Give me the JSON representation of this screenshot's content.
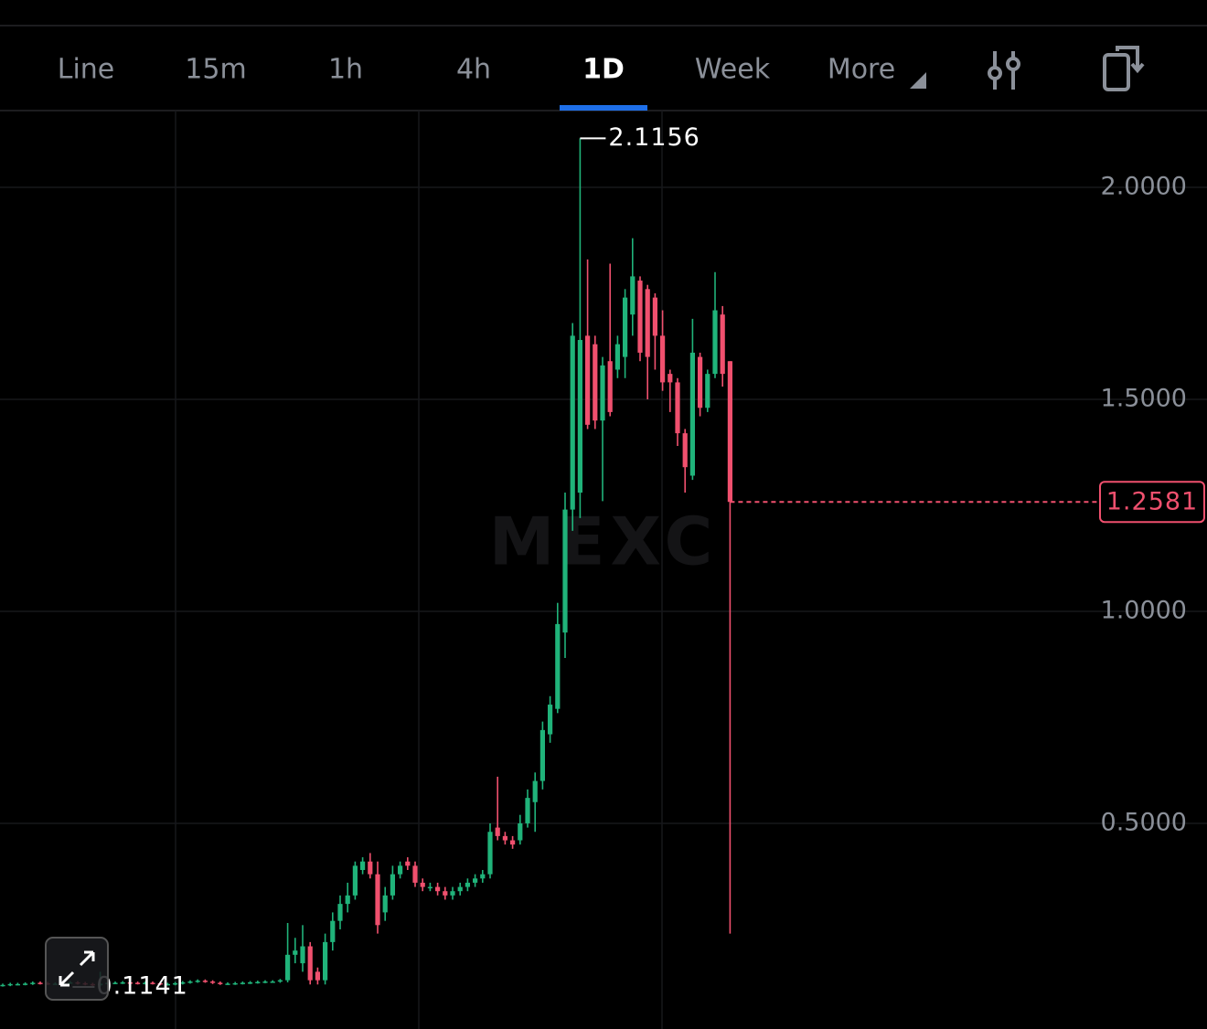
{
  "tabs": [
    "Line",
    "15m",
    "1h",
    "4h",
    "1D",
    "Week",
    "More"
  ],
  "active_tab": 4,
  "chart_data": {
    "type": "candlestick",
    "watermark": "MEXC",
    "up_color": "#20b37a",
    "down_color": "#f0506e",
    "grid": true,
    "ylim": [
      0.015,
      2.181
    ],
    "yticks": [
      {
        "value": 0.5,
        "label": "0.5000"
      },
      {
        "value": 1,
        "label": "1.0000"
      },
      {
        "value": 1.5,
        "label": "1.5000"
      },
      {
        "value": 2,
        "label": "2.0000"
      }
    ],
    "open": [
      0.118,
      0.119,
      0.121,
      0.121,
      0.122,
      0.124,
      0.123,
      0.122,
      0.122,
      0.124,
      0.125,
      0.123,
      0.121,
      0.118,
      0.122,
      0.124,
      0.124,
      0.125,
      0.124,
      0.123,
      0.124,
      0.123,
      0.121,
      0.121,
      0.123,
      0.125,
      0.127,
      0.129,
      0.127,
      0.124,
      0.122,
      0.122,
      0.123,
      0.124,
      0.125,
      0.126,
      0.127,
      0.127,
      0.13,
      0.19,
      0.17,
      0.21,
      0.15,
      0.13,
      0.22,
      0.27,
      0.31,
      0.33,
      0.39,
      0.41,
      0.38,
      0.29,
      0.33,
      0.38,
      0.41,
      0.4,
      0.36,
      0.35,
      0.35,
      0.34,
      0.33,
      0.34,
      0.35,
      0.36,
      0.37,
      0.38,
      0.49,
      0.47,
      0.46,
      0.46,
      0.5,
      0.55,
      0.6,
      0.71,
      0.77,
      0.95,
      1.24,
      1.28,
      1.65,
      1.63,
      1.45,
      1.59,
      1.57,
      1.6,
      1.7,
      1.78,
      1.76,
      1.74,
      1.65,
      1.56,
      1.54,
      1.42,
      1.32,
      1.6,
      1.48,
      1.56,
      1.7,
      1.59
    ],
    "high": [
      0.122,
      0.124,
      0.124,
      0.125,
      0.127,
      0.127,
      0.126,
      0.125,
      0.127,
      0.128,
      0.128,
      0.126,
      0.124,
      0.15,
      0.127,
      0.127,
      0.128,
      0.128,
      0.127,
      0.127,
      0.127,
      0.126,
      0.124,
      0.126,
      0.128,
      0.13,
      0.132,
      0.132,
      0.13,
      0.127,
      0.125,
      0.126,
      0.127,
      0.128,
      0.129,
      0.13,
      0.13,
      0.133,
      0.265,
      0.23,
      0.26,
      0.22,
      0.16,
      0.24,
      0.29,
      0.33,
      0.36,
      0.41,
      0.42,
      0.43,
      0.41,
      0.35,
      0.4,
      0.41,
      0.42,
      0.41,
      0.37,
      0.36,
      0.36,
      0.35,
      0.35,
      0.36,
      0.37,
      0.38,
      0.39,
      0.5,
      0.61,
      0.48,
      0.47,
      0.52,
      0.58,
      0.62,
      0.74,
      0.8,
      1.02,
      1.28,
      1.68,
      2.1156,
      1.83,
      1.65,
      1.6,
      1.82,
      1.65,
      1.76,
      1.88,
      1.79,
      1.77,
      1.75,
      1.71,
      1.57,
      1.55,
      1.43,
      1.69,
      1.61,
      1.57,
      1.8,
      1.72,
      1.59
    ],
    "low": [
      0.115,
      0.116,
      0.118,
      0.118,
      0.119,
      0.12,
      0.119,
      0.119,
      0.119,
      0.121,
      0.12,
      0.118,
      0.1141,
      0.115,
      0.119,
      0.121,
      0.121,
      0.121,
      0.12,
      0.12,
      0.12,
      0.118,
      0.118,
      0.118,
      0.12,
      0.122,
      0.124,
      0.124,
      0.121,
      0.119,
      0.119,
      0.119,
      0.12,
      0.121,
      0.122,
      0.123,
      0.124,
      0.124,
      0.125,
      0.17,
      0.15,
      0.12,
      0.12,
      0.12,
      0.2,
      0.25,
      0.29,
      0.32,
      0.38,
      0.37,
      0.24,
      0.27,
      0.32,
      0.37,
      0.39,
      0.35,
      0.34,
      0.34,
      0.33,
      0.32,
      0.32,
      0.33,
      0.34,
      0.35,
      0.36,
      0.37,
      0.46,
      0.45,
      0.44,
      0.45,
      0.49,
      0.48,
      0.58,
      0.69,
      0.76,
      0.89,
      1.19,
      1.22,
      1.43,
      1.43,
      1.26,
      1.46,
      1.55,
      1.55,
      1.65,
      1.59,
      1.5,
      1.57,
      1.52,
      1.47,
      1.39,
      1.28,
      1.31,
      1.46,
      1.47,
      1.55,
      1.53,
      0.24
    ],
    "close": [
      0.119,
      0.121,
      0.121,
      0.122,
      0.124,
      0.123,
      0.122,
      0.122,
      0.124,
      0.125,
      0.123,
      0.121,
      0.118,
      0.122,
      0.124,
      0.124,
      0.125,
      0.124,
      0.123,
      0.124,
      0.123,
      0.121,
      0.121,
      0.123,
      0.125,
      0.127,
      0.129,
      0.127,
      0.124,
      0.122,
      0.122,
      0.123,
      0.124,
      0.125,
      0.126,
      0.127,
      0.127,
      0.13,
      0.19,
      0.2,
      0.21,
      0.13,
      0.13,
      0.22,
      0.27,
      0.31,
      0.33,
      0.4,
      0.41,
      0.38,
      0.26,
      0.33,
      0.38,
      0.4,
      0.4,
      0.36,
      0.35,
      0.35,
      0.34,
      0.33,
      0.34,
      0.35,
      0.36,
      0.37,
      0.38,
      0.48,
      0.47,
      0.46,
      0.45,
      0.5,
      0.56,
      0.6,
      0.72,
      0.78,
      0.97,
      1.24,
      1.65,
      1.64,
      1.44,
      1.45,
      1.58,
      1.47,
      1.63,
      1.74,
      1.79,
      1.61,
      1.6,
      1.65,
      1.54,
      1.54,
      1.42,
      1.34,
      1.61,
      1.48,
      1.56,
      1.71,
      1.56,
      1.2581
    ]
  }
}
